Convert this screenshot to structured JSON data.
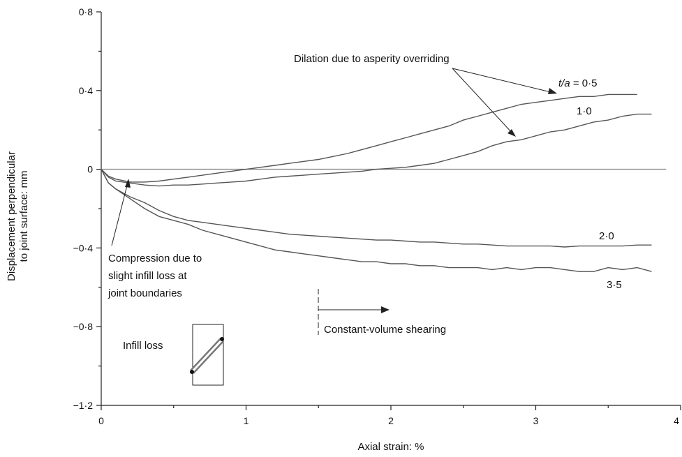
{
  "chart_data": {
    "type": "line",
    "xlabel": "Axial strain: %",
    "ylabel_lines": [
      "Displacement perpendicular",
      "to joint surface: mm"
    ],
    "xlim": [
      0,
      4
    ],
    "ylim": [
      -1.2,
      0.8
    ],
    "x_ticks": [
      {
        "v": 0,
        "label": "0"
      },
      {
        "v": 1,
        "label": "1"
      },
      {
        "v": 2,
        "label": "2"
      },
      {
        "v": 3,
        "label": "3"
      },
      {
        "v": 4,
        "label": "4"
      }
    ],
    "y_ticks": [
      {
        "v": 0.8,
        "label": "0·8"
      },
      {
        "v": 0.4,
        "label": "0·4"
      },
      {
        "v": 0,
        "label": "0"
      },
      {
        "v": -0.4,
        "label": "−0·4"
      },
      {
        "v": -0.8,
        "label": "−0·8"
      },
      {
        "v": -1.2,
        "label": "−1·2"
      }
    ],
    "series": [
      {
        "name": "t/a = 0·5",
        "label_parts": [
          "t/a",
          " = 0·5"
        ],
        "x": [
          0,
          0.05,
          0.1,
          0.2,
          0.3,
          0.4,
          0.5,
          0.6,
          0.7,
          0.8,
          0.9,
          1.0,
          1.1,
          1.2,
          1.3,
          1.4,
          1.5,
          1.6,
          1.7,
          1.8,
          1.9,
          2.0,
          2.1,
          2.2,
          2.3,
          2.4,
          2.5,
          2.6,
          2.7,
          2.8,
          2.9,
          3.0,
          3.1,
          3.2,
          3.3,
          3.4,
          3.5,
          3.6,
          3.7
        ],
        "y": [
          0,
          -0.035,
          -0.05,
          -0.065,
          -0.065,
          -0.06,
          -0.05,
          -0.04,
          -0.03,
          -0.02,
          -0.01,
          0.0,
          0.01,
          0.02,
          0.03,
          0.04,
          0.05,
          0.065,
          0.08,
          0.1,
          0.12,
          0.14,
          0.16,
          0.18,
          0.2,
          0.22,
          0.25,
          0.27,
          0.29,
          0.31,
          0.33,
          0.34,
          0.35,
          0.36,
          0.37,
          0.37,
          0.38,
          0.38,
          0.38
        ]
      },
      {
        "name": "1·0",
        "label_parts": [
          "1·0"
        ],
        "x": [
          0,
          0.05,
          0.1,
          0.2,
          0.3,
          0.4,
          0.5,
          0.6,
          0.7,
          0.8,
          0.9,
          1.0,
          1.1,
          1.2,
          1.3,
          1.4,
          1.5,
          1.6,
          1.7,
          1.8,
          1.9,
          2.0,
          2.1,
          2.2,
          2.3,
          2.4,
          2.5,
          2.6,
          2.7,
          2.8,
          2.9,
          3.0,
          3.1,
          3.2,
          3.3,
          3.4,
          3.5,
          3.6,
          3.7,
          3.8
        ],
        "y": [
          0,
          -0.04,
          -0.06,
          -0.07,
          -0.08,
          -0.085,
          -0.08,
          -0.08,
          -0.075,
          -0.07,
          -0.065,
          -0.06,
          -0.05,
          -0.04,
          -0.035,
          -0.03,
          -0.025,
          -0.02,
          -0.015,
          -0.01,
          0.0,
          0.005,
          0.01,
          0.02,
          0.03,
          0.05,
          0.07,
          0.09,
          0.12,
          0.14,
          0.15,
          0.17,
          0.19,
          0.2,
          0.22,
          0.24,
          0.25,
          0.27,
          0.28,
          0.28
        ]
      },
      {
        "name": "2·0",
        "label_parts": [
          "2·0"
        ],
        "x": [
          0,
          0.05,
          0.1,
          0.2,
          0.3,
          0.4,
          0.5,
          0.6,
          0.7,
          0.8,
          0.9,
          1.0,
          1.1,
          1.2,
          1.3,
          1.4,
          1.5,
          1.6,
          1.7,
          1.8,
          1.9,
          2.0,
          2.1,
          2.2,
          2.3,
          2.4,
          2.5,
          2.6,
          2.7,
          2.8,
          2.9,
          3.0,
          3.1,
          3.2,
          3.3,
          3.4,
          3.5,
          3.6,
          3.7,
          3.8
        ],
        "y": [
          0,
          -0.07,
          -0.1,
          -0.14,
          -0.17,
          -0.21,
          -0.24,
          -0.26,
          -0.27,
          -0.28,
          -0.29,
          -0.3,
          -0.31,
          -0.32,
          -0.33,
          -0.335,
          -0.34,
          -0.345,
          -0.35,
          -0.355,
          -0.36,
          -0.36,
          -0.365,
          -0.37,
          -0.37,
          -0.375,
          -0.38,
          -0.38,
          -0.385,
          -0.39,
          -0.39,
          -0.39,
          -0.39,
          -0.395,
          -0.39,
          -0.39,
          -0.39,
          -0.39,
          -0.385,
          -0.385
        ]
      },
      {
        "name": "3·5",
        "label_parts": [
          "3·5"
        ],
        "x": [
          0,
          0.05,
          0.1,
          0.2,
          0.3,
          0.4,
          0.5,
          0.6,
          0.7,
          0.8,
          0.9,
          1.0,
          1.1,
          1.2,
          1.3,
          1.4,
          1.5,
          1.6,
          1.7,
          1.8,
          1.9,
          2.0,
          2.1,
          2.2,
          2.3,
          2.4,
          2.5,
          2.6,
          2.7,
          2.8,
          2.9,
          3.0,
          3.1,
          3.2,
          3.3,
          3.4,
          3.5,
          3.6,
          3.7,
          3.8
        ],
        "y": [
          0,
          -0.07,
          -0.1,
          -0.15,
          -0.2,
          -0.24,
          -0.26,
          -0.28,
          -0.31,
          -0.33,
          -0.35,
          -0.37,
          -0.39,
          -0.41,
          -0.42,
          -0.43,
          -0.44,
          -0.45,
          -0.46,
          -0.47,
          -0.47,
          -0.48,
          -0.48,
          -0.49,
          -0.49,
          -0.5,
          -0.5,
          -0.5,
          -0.51,
          -0.5,
          -0.51,
          -0.5,
          -0.5,
          -0.51,
          -0.52,
          -0.52,
          -0.5,
          -0.51,
          -0.5,
          -0.52
        ]
      }
    ],
    "annotations": {
      "dilation": "Dilation due to asperity overriding",
      "compression": [
        "Compression due to",
        "slight infill loss at",
        "joint boundaries"
      ],
      "constant_volume": "Constant-volume shearing",
      "infill_loss": "Infill loss"
    }
  }
}
